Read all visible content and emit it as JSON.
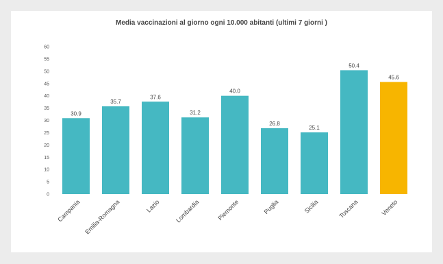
{
  "chart_data": {
    "type": "bar",
    "title": "Media vaccinazioni al giorno ogni 10.000 abitanti (ultimi 7 giorni )",
    "xlabel": "",
    "ylabel": "",
    "ylim": [
      0,
      60
    ],
    "yticks": [
      0,
      5,
      10,
      15,
      20,
      25,
      30,
      35,
      40,
      45,
      50,
      55,
      60
    ],
    "ytick_labels": [
      "0",
      "5",
      "10",
      "15",
      "20",
      "25",
      "30",
      "35",
      "40",
      "45",
      "50",
      "55",
      "60"
    ],
    "categories": [
      "Campania",
      "Emilia-Romagna",
      "Lazio",
      "Lombardia",
      "Piemonte",
      "Puglia",
      "Sicilia",
      "Toscana",
      "Veneto"
    ],
    "values": [
      30.9,
      35.7,
      37.6,
      31.2,
      40.0,
      26.8,
      25.1,
      50.4,
      45.6
    ],
    "value_labels": [
      "30.9",
      "35.7",
      "37.6",
      "31.2",
      "40.0",
      "26.8",
      "25.1",
      "50.4",
      "45.6"
    ],
    "grid": false,
    "legend": "none",
    "colors": {
      "default_bar": "#45b8c2",
      "highlight_bar": "#f7b500",
      "highlight_category": "Veneto",
      "background": "#ffffff",
      "frame": "#ececec"
    }
  }
}
